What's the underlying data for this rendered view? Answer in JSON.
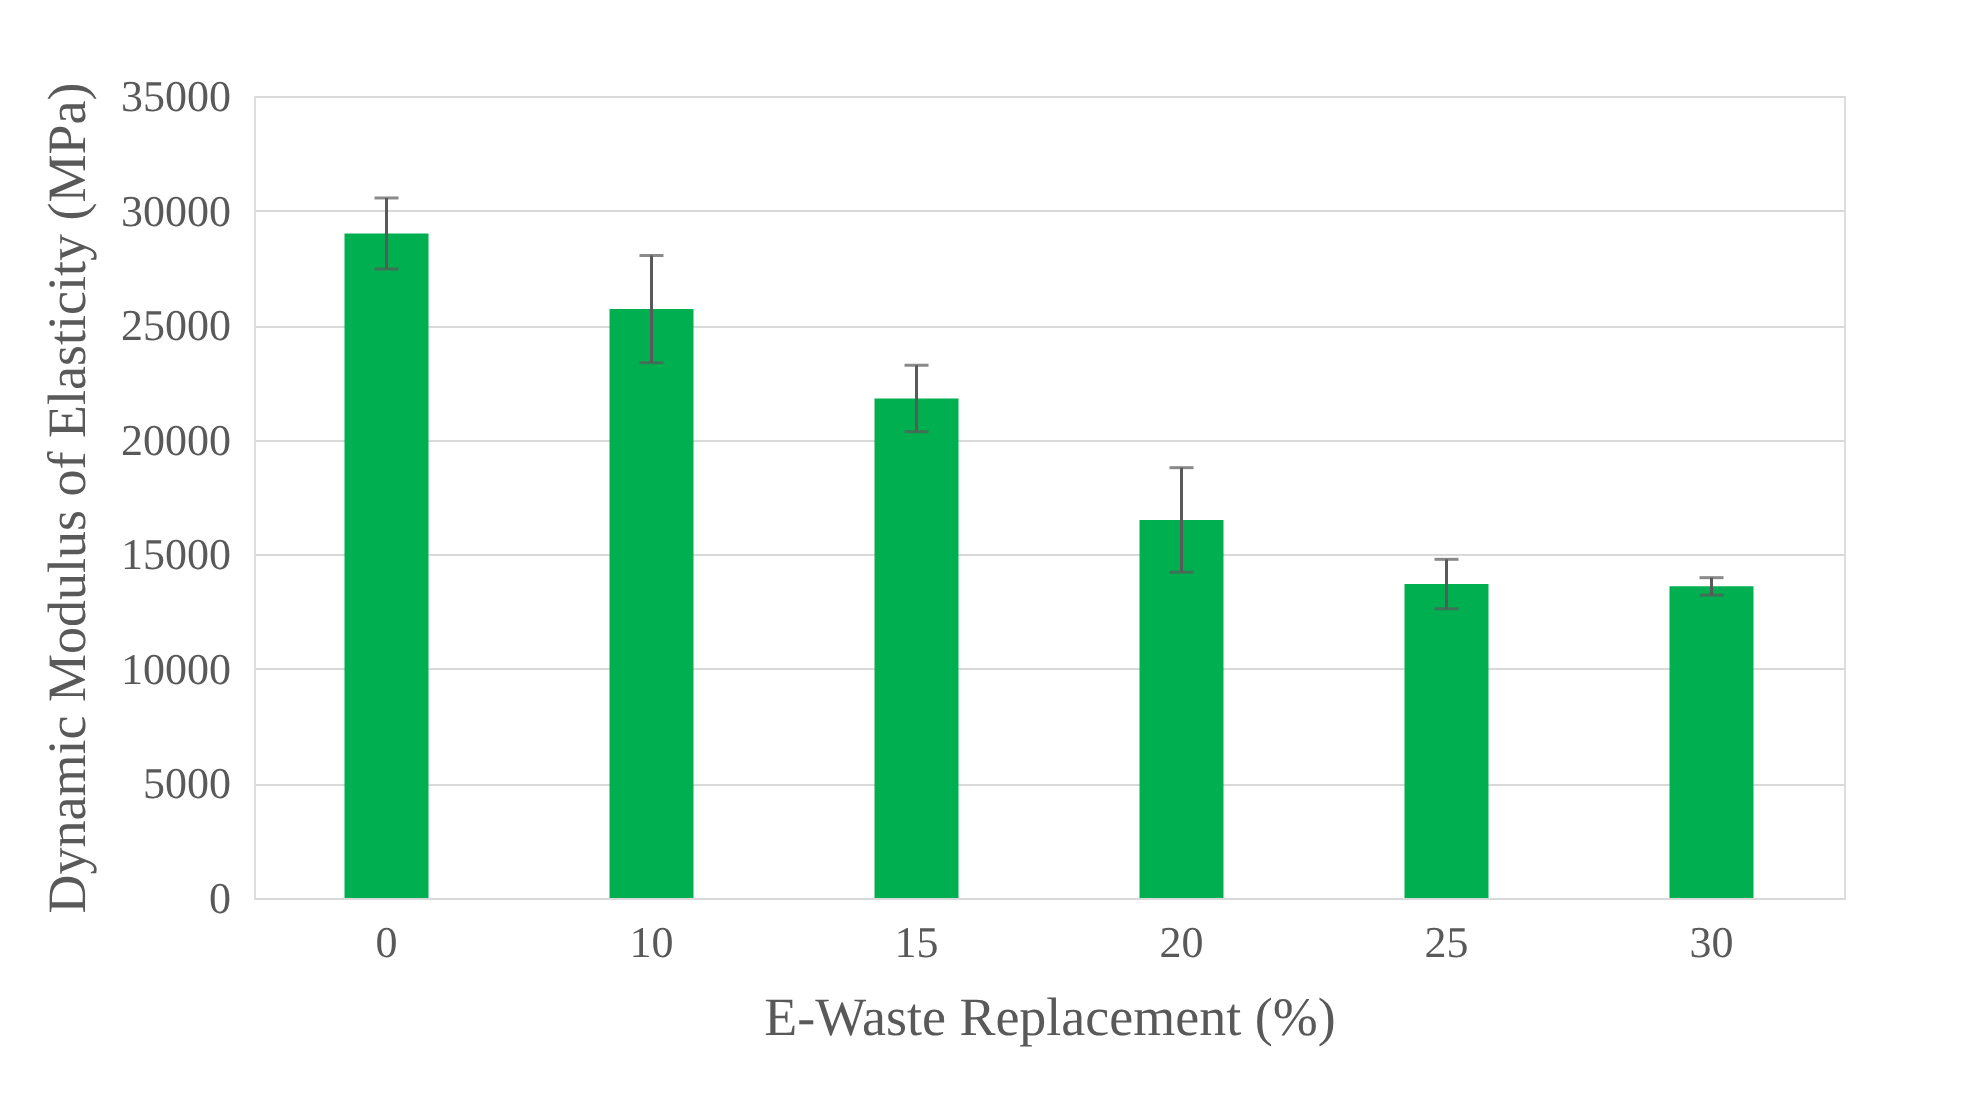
{
  "chart_data": {
    "type": "bar",
    "xlabel": "E-Waste Replacement (%)",
    "ylabel": "Dynamic Modulus of Elasticity (MPa)",
    "categories": [
      "0",
      "10",
      "15",
      "20",
      "25",
      "30"
    ],
    "values": [
      29000,
      25700,
      21800,
      16500,
      13700,
      13600
    ],
    "errors": [
      1550,
      2340,
      1450,
      2280,
      1080,
      380
    ],
    "color": "#00b050",
    "ylim": [
      0,
      35000
    ],
    "yticks": [
      0,
      5000,
      10000,
      15000,
      20000,
      25000,
      30000,
      35000
    ],
    "grid": "y"
  }
}
